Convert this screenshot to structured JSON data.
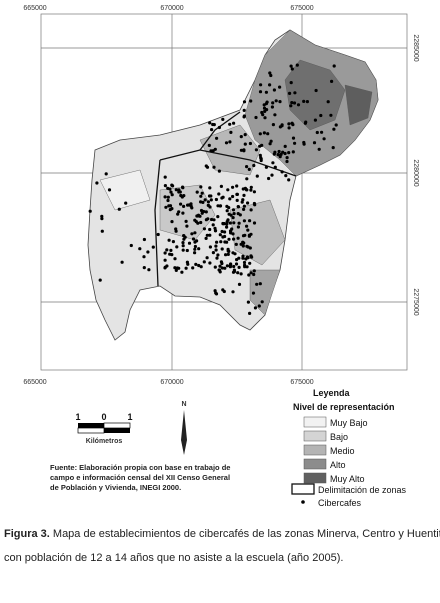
{
  "map": {
    "coords": {
      "top": [
        "665000",
        "670000",
        "675000"
      ],
      "bottom": [
        "665000",
        "670000",
        "675000"
      ],
      "right": [
        "2285000",
        "2280000",
        "2275000"
      ]
    },
    "legend": {
      "title": "Leyenda",
      "subtitle": "Nivel de representación",
      "items": [
        "Muy Bajo",
        "Bajo",
        "Medio",
        "Alto",
        "Muy Alto"
      ],
      "zones": "Delimitación de zonas",
      "points": "Cibercafes"
    },
    "scale": {
      "labels": [
        "1",
        "0",
        "1"
      ],
      "unit": "Kilómetros"
    },
    "north": "N",
    "source": [
      "Fuente: Elaboración propia con base en trabajo de",
      "campo e información censal del XII Censo General",
      "de Población y Vivienda, INEGI 2000."
    ]
  },
  "caption": {
    "label": "Figura 3.",
    "text": [
      "Mapa de establecimientos de cibercafés de las zonas Minerva, Centro y Huentitán,",
      "con población de 12 a 14 años que no asiste a la escuela (año 2005)."
    ]
  }
}
